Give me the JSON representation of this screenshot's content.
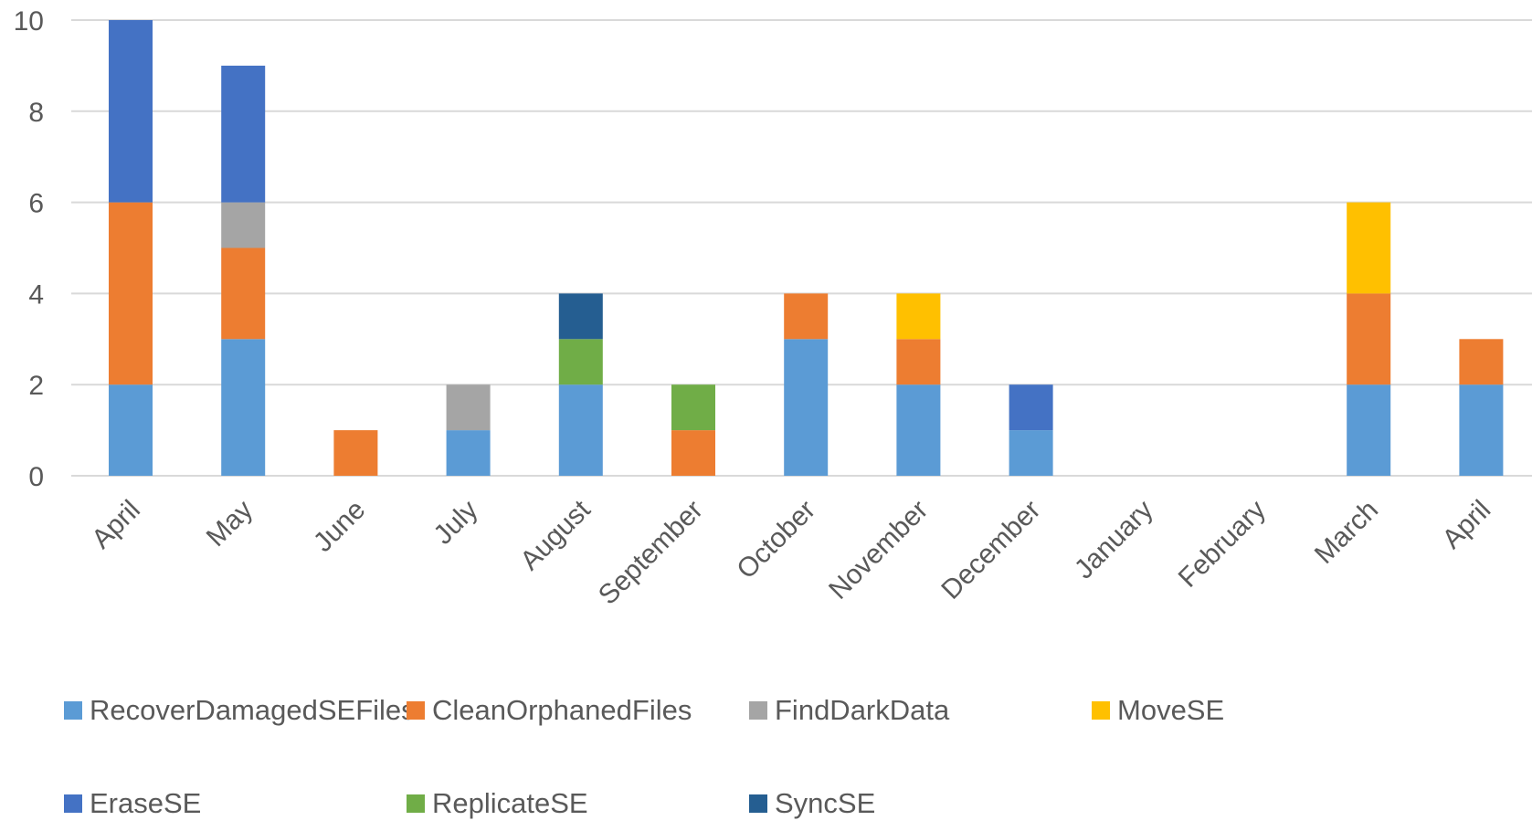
{
  "chart_data": {
    "type": "bar",
    "stacked": true,
    "categories": [
      "April",
      "May",
      "June",
      "July",
      "August",
      "September",
      "October",
      "November",
      "December",
      "January",
      "February",
      "March",
      "April"
    ],
    "ylim": [
      0,
      10
    ],
    "yticks": [
      0,
      2,
      4,
      6,
      8,
      10
    ],
    "grid": true,
    "legend_position": "bottom",
    "series": [
      {
        "name": "RecoverDamagedSEFiles",
        "color": "#5B9BD5",
        "values": [
          2,
          3,
          0,
          1,
          2,
          0,
          3,
          2,
          1,
          0,
          0,
          2,
          2
        ]
      },
      {
        "name": "CleanOrphanedFiles",
        "color": "#ED7D31",
        "values": [
          4,
          2,
          1,
          0,
          0,
          1,
          1,
          1,
          0,
          0,
          0,
          2,
          1
        ]
      },
      {
        "name": "FindDarkData",
        "color": "#A5A5A5",
        "values": [
          0,
          1,
          0,
          1,
          0,
          0,
          0,
          0,
          0,
          0,
          0,
          0,
          0
        ]
      },
      {
        "name": "MoveSE",
        "color": "#FFC000",
        "values": [
          0,
          0,
          0,
          0,
          0,
          0,
          0,
          1,
          0,
          0,
          0,
          2,
          0
        ]
      },
      {
        "name": "EraseSE",
        "color": "#4472C4",
        "values": [
          4,
          3,
          0,
          0,
          0,
          0,
          0,
          0,
          1,
          0,
          0,
          0,
          0
        ]
      },
      {
        "name": "ReplicateSE",
        "color": "#70AD47",
        "values": [
          0,
          0,
          0,
          0,
          1,
          1,
          0,
          0,
          0,
          0,
          0,
          0,
          0
        ]
      },
      {
        "name": "SyncSE",
        "color": "#255E91",
        "values": [
          0,
          0,
          0,
          0,
          1,
          0,
          0,
          0,
          0,
          0,
          0,
          0,
          0
        ]
      }
    ]
  }
}
